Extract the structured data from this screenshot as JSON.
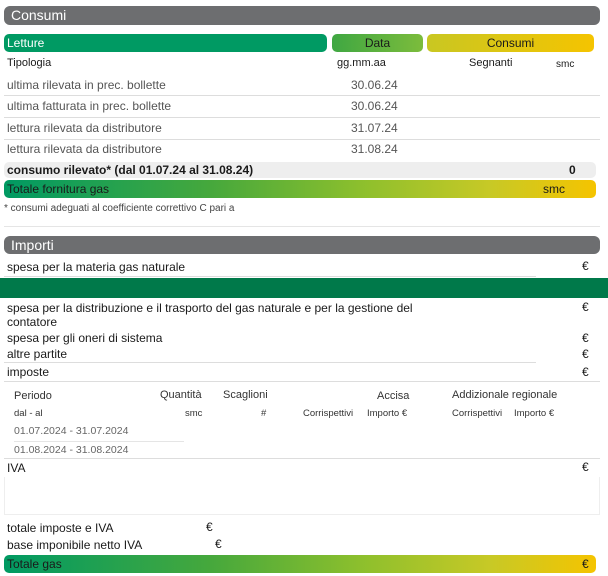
{
  "consumi": {
    "title": "Consumi",
    "header": {
      "letture": "Letture",
      "data": "Data",
      "consumi": "Consumi"
    },
    "columns": {
      "tipologia": "Tipologia",
      "data_fmt": "gg.mm.aa",
      "segnanti": "Segnanti",
      "smc": "smc"
    },
    "rows": [
      {
        "label": "ultima rilevata in prec. bollette",
        "date": "30.06.24"
      },
      {
        "label": "ultima fatturata in prec. bollette",
        "date": "30.06.24"
      },
      {
        "label": "lettura rilevata da distributore",
        "date": "31.07.24"
      },
      {
        "label": "lettura rilevata da distributore",
        "date": "31.08.24"
      }
    ],
    "consumo_rilevato": {
      "label": "consumo rilevato* (dal 01.07.24 al 31.08.24)",
      "value": "0"
    },
    "totale": {
      "label": "Totale fornitura gas",
      "unit": "smc"
    },
    "footnote": "* consumi adeguati al coefficiente correttivo C pari a"
  },
  "importi": {
    "title": "Importi",
    "materia": {
      "label": "spesa per la materia gas naturale",
      "currency": "€"
    },
    "distribuzione": {
      "label": "spesa per la distribuzione e il trasporto del gas naturale e per la gestione del contatore",
      "currency": "€"
    },
    "oneri": {
      "label": "spesa per gli oneri di sistema",
      "currency": "€"
    },
    "altre": {
      "label": "altre partite",
      "currency": "€"
    },
    "imposte": {
      "label": "imposte",
      "currency": "€"
    },
    "table": {
      "periodo": "Periodo",
      "dal_al": "dal - al",
      "quantita": "Quantità",
      "smc": "smc",
      "scaglioni": "Scaglioni",
      "hash": "#",
      "accisa": "Accisa",
      "addizionale": "Addizionale regionale",
      "corrispettivi_1": "Corrispettivi",
      "importo_1": "Importo €",
      "corrispettivi_2": "Corrispettivi",
      "importo_2": "Importo €",
      "periods": [
        "01.07.2024 - 31.07.2024",
        "01.08.2024 - 31.08.2024"
      ]
    },
    "iva": {
      "label": "IVA",
      "currency": "€"
    },
    "totale_imposte": {
      "label": "totale imposte e IVA",
      "currency": "€"
    },
    "base_imponibile": {
      "label": "base imponibile netto IVA",
      "currency": "€"
    },
    "totale_gas": {
      "label": "Totale gas",
      "currency": "€"
    }
  }
}
